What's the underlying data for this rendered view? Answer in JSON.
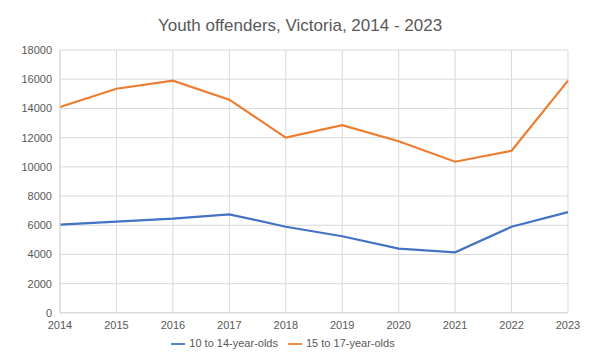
{
  "chart_data": {
    "type": "line",
    "title": "Youth offenders, Victoria, 2014 - 2023",
    "categories": [
      "2014",
      "2015",
      "2016",
      "2017",
      "2018",
      "2019",
      "2020",
      "2021",
      "2022",
      "2023"
    ],
    "series": [
      {
        "name": "10 to 14-year-olds",
        "color": "#4472c4",
        "values": [
          6050,
          6250,
          6450,
          6750,
          5900,
          5250,
          4400,
          4150,
          5900,
          6900
        ]
      },
      {
        "name": "15 to 17-year-olds",
        "color": "#ed7d31",
        "values": [
          14100,
          15350,
          15900,
          14600,
          12000,
          12850,
          11750,
          10350,
          11100,
          15900
        ]
      }
    ],
    "ylim": [
      0,
      18000
    ],
    "yticks": [
      0,
      2000,
      4000,
      6000,
      8000,
      10000,
      12000,
      14000,
      16000,
      18000
    ],
    "grid": true,
    "legend": "bottom"
  }
}
